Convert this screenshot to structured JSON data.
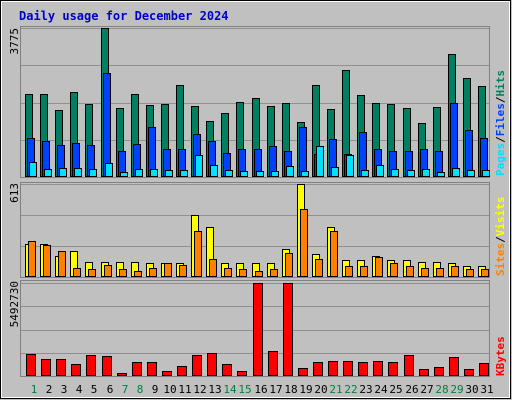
{
  "title": "Daily usage for December 2024",
  "colors": {
    "background": "#c0c0c0",
    "panel": "#c0c0c0",
    "grid": "#909090",
    "hits": "#008060",
    "files": "#0040ff",
    "pages": "#00e0ff",
    "visits": "#ffff00",
    "sites": "#ff8000",
    "kbytes": "#ff0000",
    "weekday": "#000000",
    "weekend": "#008040",
    "slash": "#000000"
  },
  "legend": {
    "top": [
      "Pages",
      "Files",
      "Hits"
    ],
    "middle": [
      "Sites",
      "Visits"
    ],
    "bottom": [
      "KBytes"
    ]
  },
  "chart_data": {
    "type": "bar",
    "categories": [
      "1",
      "2",
      "3",
      "4",
      "5",
      "6",
      "7",
      "8",
      "9",
      "10",
      "11",
      "12",
      "13",
      "14",
      "15",
      "16",
      "17",
      "18",
      "19",
      "20",
      "21",
      "22",
      "23",
      "24",
      "25",
      "26",
      "27",
      "28",
      "29",
      "30",
      "31"
    ],
    "weekend_days": [
      "1",
      "7",
      "8",
      "14",
      "15",
      "21",
      "22",
      "28",
      "29"
    ],
    "panels": [
      {
        "ymax": 3775,
        "ymax_label": "3775",
        "series": [
          {
            "name": "Hits",
            "values": [
              2110,
              2110,
              1690,
              2160,
              1840,
              3775,
              1760,
              2100,
              1830,
              1840,
              2330,
              1810,
              1420,
              1620,
              1900,
              2000,
              1800,
              1870,
              1390,
              2340,
              1730,
              2720,
              2080,
              1880,
              1860,
              1740,
              1380,
              1780,
              3120,
              2520,
              2310
            ]
          },
          {
            "name": "Files",
            "values": [
              990,
              910,
              810,
              860,
              800,
              2640,
              670,
              830,
              1270,
              700,
              700,
              1100,
              920,
              610,
              700,
              700,
              790,
              650,
              1270,
              580,
              960,
              580,
              1150,
              700,
              660,
              670,
              700,
              660,
              1870,
              1200,
              980
            ]
          },
          {
            "name": "Pages",
            "values": [
              390,
              210,
              230,
              220,
              200,
              360,
              130,
              200,
              210,
              180,
              170,
              550,
              310,
              170,
              140,
              140,
              150,
              270,
              140,
              780,
              250,
              560,
              180,
              300,
              210,
              170,
              200,
              120,
              220,
              170,
              190
            ]
          }
        ]
      },
      {
        "ymax": 613,
        "ymax_label": "613",
        "series": [
          {
            "name": "Visits",
            "values": [
              215,
              218,
              140,
              174,
              100,
              100,
              100,
              100,
              90,
              90,
              90,
              410,
              330,
              90,
              90,
              90,
              90,
              184,
              613,
              151,
              330,
              110,
              110,
              140,
              110,
              110,
              100,
              100,
              91,
              70,
              70
            ]
          },
          {
            "name": "Sites",
            "values": [
              240,
              210,
              170,
              60,
              50,
              80,
              50,
              40,
              60,
              90,
              80,
              300,
              120,
              60,
              50,
              40,
              50,
              160,
              450,
              120,
              300,
              70,
              70,
              130,
              90,
              70,
              60,
              60,
              70,
              50,
              50
            ]
          }
        ]
      },
      {
        "ymax": 5492730,
        "ymax_label": "5492730",
        "series": [
          {
            "name": "KBytes",
            "values": [
              1290000,
              1030000,
              1020000,
              710000,
              1220000,
              1180000,
              200000,
              850000,
              810000,
              290000,
              580000,
              1230000,
              1330000,
              690000,
              300000,
              5492730,
              1470000,
              5492730,
              500000,
              850000,
              870000,
              860000,
              850000,
              880000,
              850000,
              1250000,
              440000,
              510000,
              1110000,
              400000,
              770000
            ]
          }
        ]
      }
    ]
  }
}
